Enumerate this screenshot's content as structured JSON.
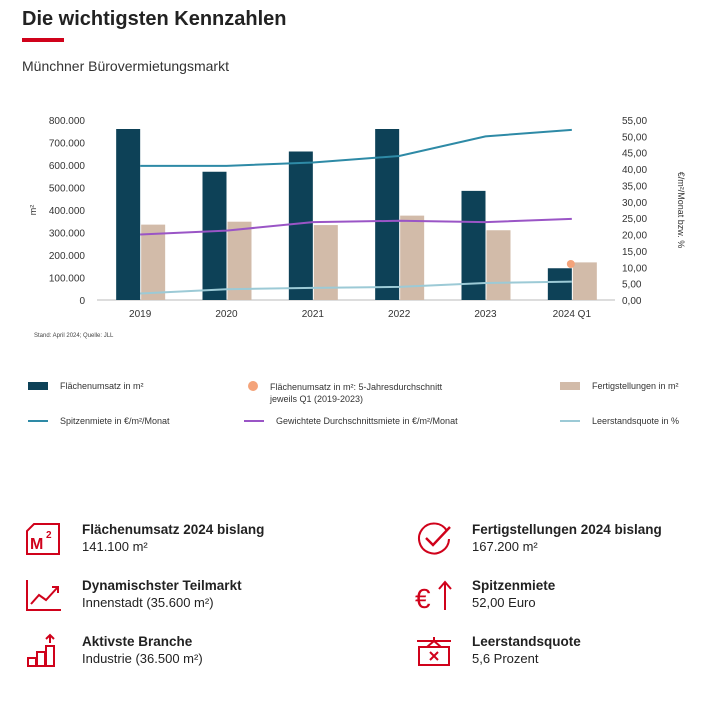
{
  "header": {
    "title": "Die wichtigsten Kennzahlen",
    "subtitle": "Münchner Bürovermietungsmarkt"
  },
  "source": "Stand: April 2024; Quelle: JLL",
  "colors": {
    "accent": "#d0021b",
    "flaechenumsatz": "#0d4157",
    "fertigstellungen": "#d2bba9",
    "fuenfjahresschnitt": "#f4a37a",
    "spitzenmiete": "#2e8aa6",
    "durchschnittsmiete": "#9a55c6",
    "leerstand": "#9ccad6"
  },
  "chart_data": {
    "type": "bar",
    "categories": [
      "2019",
      "2020",
      "2021",
      "2022",
      "2023",
      "2024 Q1"
    ],
    "y_left": {
      "label": "m²",
      "ylim": [
        0,
        800000
      ],
      "ticks": [
        "0",
        "100.000",
        "200.000",
        "300.000",
        "400.000",
        "500.000",
        "600.000",
        "700.000",
        "800.000"
      ]
    },
    "y_right": {
      "label": "€/m²/Monat bzw. %",
      "ylim": [
        0,
        55
      ],
      "ticks": [
        "0,00",
        "5,00",
        "10,00",
        "15,00",
        "20,00",
        "25,00",
        "30,00",
        "35,00",
        "40,00",
        "45,00",
        "50,00",
        "55,00"
      ]
    },
    "series": [
      {
        "name": "Flächenumsatz in m²",
        "type": "bar",
        "axis": "left",
        "values": [
          760000,
          570000,
          660000,
          760000,
          485000,
          141100
        ]
      },
      {
        "name": "Fertigstellungen in m²",
        "type": "bar",
        "axis": "left",
        "values": [
          335000,
          348000,
          333000,
          375000,
          310000,
          167200
        ]
      },
      {
        "name": "Flächenumsatz in m²: 5-Jahresdurchschnitt jeweils Q1 (2019-2023)",
        "type": "point",
        "axis": "left",
        "values": [
          null,
          null,
          null,
          null,
          null,
          160000
        ]
      },
      {
        "name": "Spitzenmiete in €/m²/Monat",
        "type": "line",
        "axis": "right",
        "values": [
          41,
          41,
          42,
          44,
          50,
          52
        ]
      },
      {
        "name": "Gewichtete Durchschnittsmiete in €/m²/Monat",
        "type": "line",
        "axis": "right",
        "values": [
          20,
          21.2,
          23.8,
          24.2,
          23.8,
          24.8
        ]
      },
      {
        "name": "Leerstandsquote in %",
        "type": "line",
        "axis": "right",
        "values": [
          2,
          3.3,
          3.7,
          4,
          5.2,
          5.6
        ]
      }
    ]
  },
  "legend": {
    "flaechenumsatz": "Flächenumsatz in m²",
    "schnitt_line1": "Flächenumsatz in m²: 5-Jahresdurchschnitt",
    "schnitt_line2": "jeweils Q1 (2019-2023)",
    "fertigstellungen": "Fertigstellungen in m²",
    "spitzenmiete": "Spitzenmiete in €/m²/Monat",
    "durchschnittsmiete": "Gewichtete Durchschnittsmiete in €/m²/Monat",
    "leerstand": "Leerstandsquote in %"
  },
  "kpis": [
    {
      "icon": "square-meter-icon",
      "title": "Flächenumsatz 2024 bislang",
      "value": "141.100 m²"
    },
    {
      "icon": "checkmark-circle-icon",
      "title": "Fertigstellungen 2024 bislang",
      "value": "167.200 m²"
    },
    {
      "icon": "trend-line-icon",
      "title": "Dynamischster Teilmarkt",
      "value": "Innenstadt (35.600 m²)"
    },
    {
      "icon": "euro-up-arrow-icon",
      "title": "Spitzenmiete",
      "value": "52,00 Euro"
    },
    {
      "icon": "rising-bars-icon",
      "title": "Aktivste Branche",
      "value": "Industrie (36.500 m²)"
    },
    {
      "icon": "vacant-sign-icon",
      "title": "Leerstandsquote",
      "value": "5,6 Prozent"
    }
  ]
}
